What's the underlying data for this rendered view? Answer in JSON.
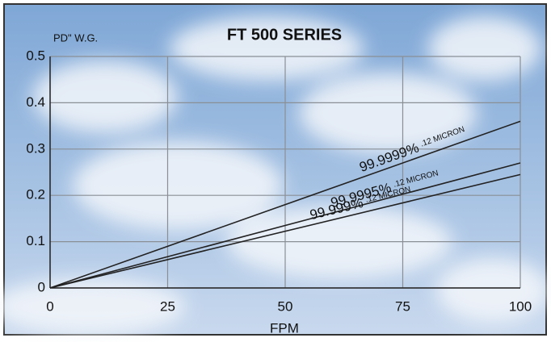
{
  "chart_data": {
    "type": "line",
    "title": "FT 500 SERIES",
    "ylabel": "PD\" W.G.",
    "xlabel": "FPM",
    "x": [
      0,
      100
    ],
    "series": [
      {
        "name": "99.9999%",
        "note": ".12 MICRON",
        "color": "#222222",
        "values": [
          0,
          0.36
        ]
      },
      {
        "name": "99.9995%",
        "note": ".12 MICRON",
        "color": "#222222",
        "values": [
          0,
          0.27
        ]
      },
      {
        "name": "99.999%",
        "note": ".12 MICRON",
        "color": "#222222",
        "values": [
          0,
          0.245
        ]
      }
    ],
    "xlim": [
      0,
      100
    ],
    "xticks": [
      0,
      25,
      50,
      75,
      100
    ],
    "ylim": [
      0,
      0.5
    ],
    "yticks": [
      0,
      0.1,
      0.2,
      0.3,
      0.4,
      0.5
    ],
    "grid": true
  }
}
